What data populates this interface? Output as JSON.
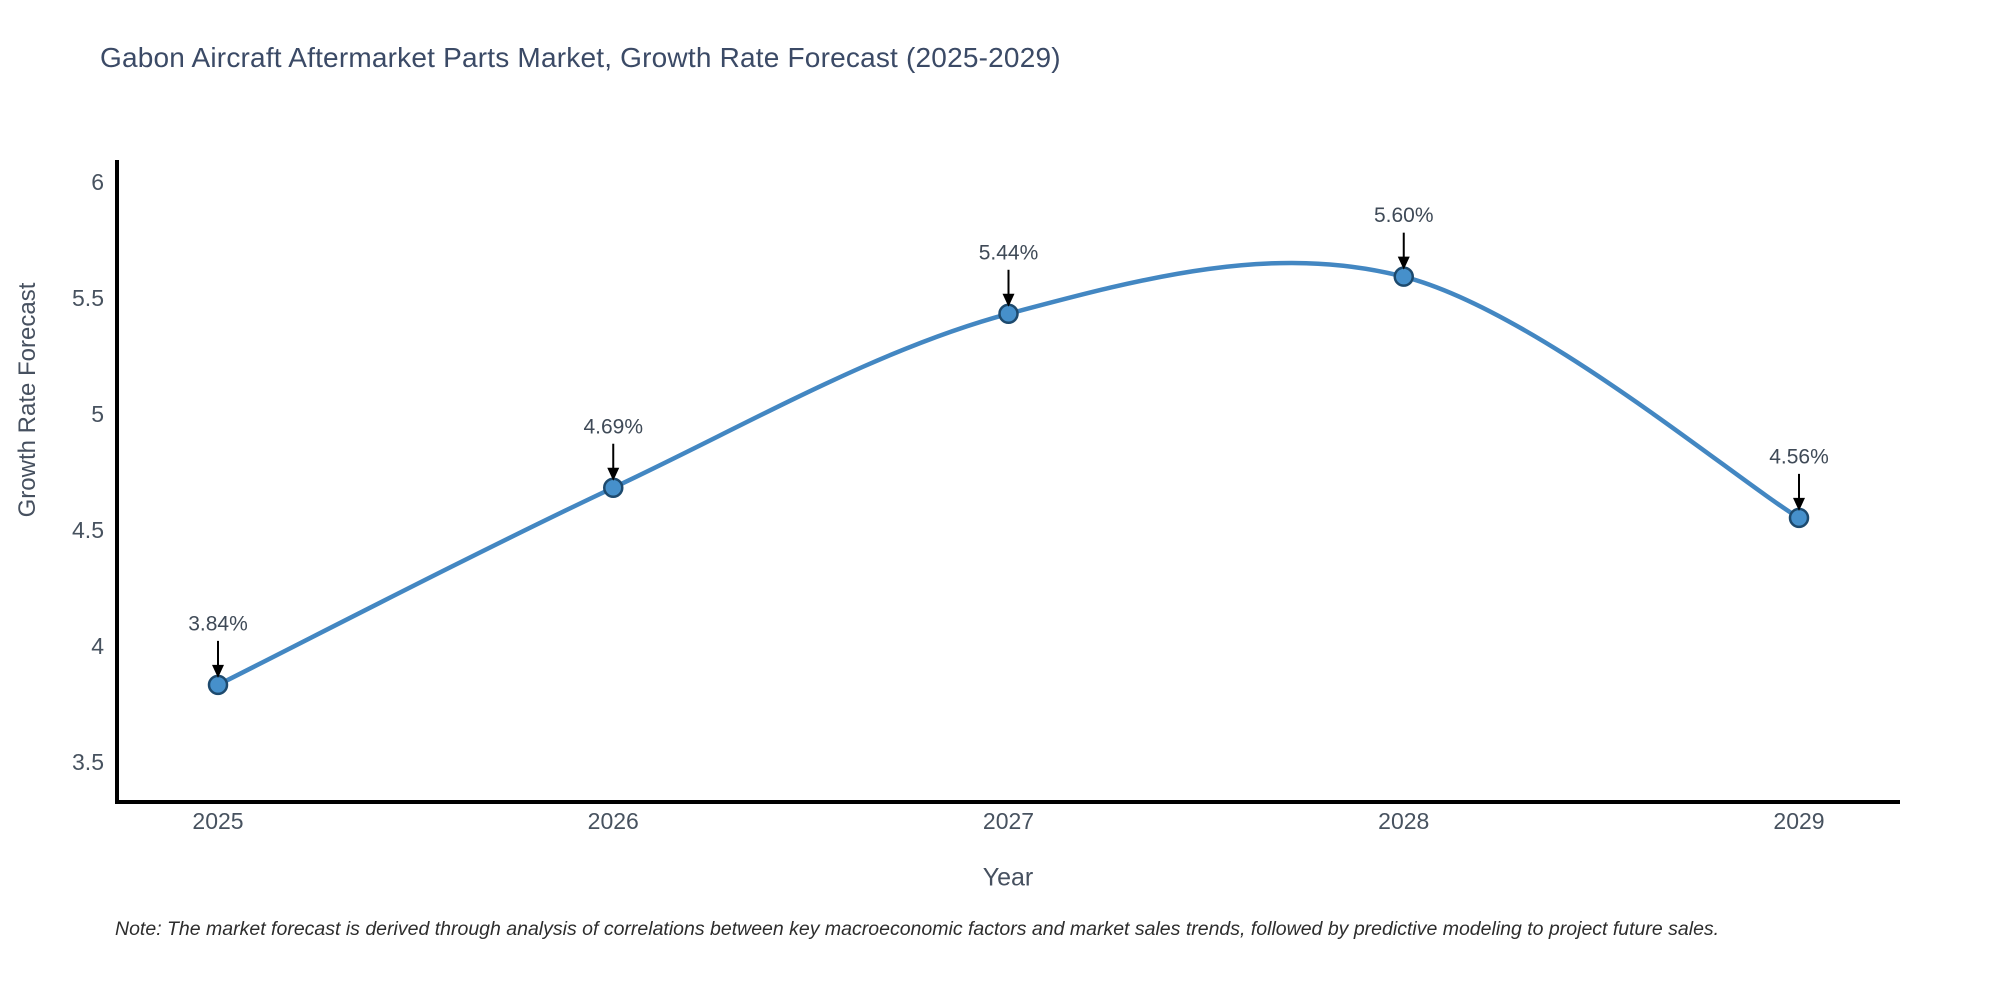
{
  "title": "Gabon Aircraft Aftermarket Parts Market, Growth Rate Forecast (2025-2029)",
  "note": "Note: The market forecast is derived through analysis of correlations between key macroeconomic factors and market sales trends, followed by predictive modeling to project future sales.",
  "colors": {
    "line": "#4387c2",
    "marker_fill": "#4690cb",
    "marker_edge": "#1d4a6e",
    "arrow": "#000000",
    "axis_line": "#000000",
    "tick_label": "#47525f",
    "annotation_text": "#3f4a57",
    "title_text": "#3b4a66",
    "background": "#ffffff"
  },
  "chart_data": {
    "type": "line",
    "line_shape": "spline",
    "title": "Gabon Aircraft Aftermarket Parts Market, Growth Rate Forecast (2025-2029)",
    "xlabel": "Year",
    "ylabel": "Growth Rate Forecast",
    "categories": [
      "2025",
      "2026",
      "2027",
      "2028",
      "2029"
    ],
    "values": [
      3.84,
      4.69,
      5.44,
      5.6,
      4.56
    ],
    "point_labels": [
      "3.84%",
      "4.69%",
      "5.44%",
      "5.60%",
      "4.56%"
    ],
    "yticks": [
      3.5,
      4,
      4.5,
      5,
      5.5,
      6
    ],
    "ytick_labels": [
      "3.5",
      "4",
      "4.5",
      "5",
      "5.5",
      "6"
    ],
    "ylim": [
      3.335,
      6.103
    ],
    "grid": false,
    "legend": "none",
    "markers": true,
    "annotations_have_arrows": true
  }
}
